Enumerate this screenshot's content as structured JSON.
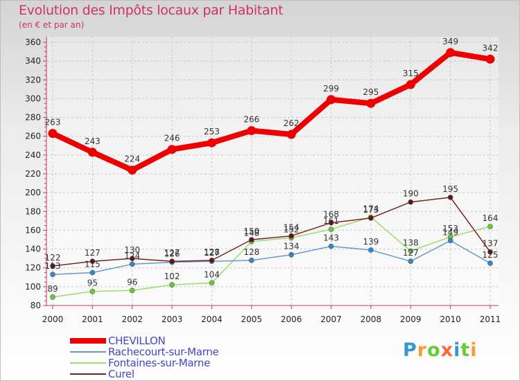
{
  "title": "Evolution des Impôts locaux par Habitant",
  "subtitle": "(en € et par an)",
  "brand": {
    "letters": [
      "P",
      "r",
      "o",
      "x",
      "i",
      "t",
      "i"
    ],
    "colors": [
      "#3399cc",
      "#ff9933",
      "#66cc33",
      "#ff6633",
      "#3399cc",
      "#66cc33",
      "#ff9933"
    ]
  },
  "chart_data": {
    "type": "line",
    "x": [
      "2000",
      "2001",
      "2002",
      "2003",
      "2004",
      "2005",
      "2006",
      "2007",
      "2008",
      "2009",
      "2010",
      "2011"
    ],
    "ylim": [
      80,
      360
    ],
    "yticks": [
      80,
      100,
      120,
      140,
      160,
      180,
      200,
      220,
      240,
      260,
      280,
      300,
      320,
      340,
      360
    ],
    "grid": true,
    "legend_position": "bottom-left",
    "series": [
      {
        "name": "Fontaines-sur-Marne",
        "color": "#99dd66",
        "marker": "#66cc33",
        "values": [
          89,
          95,
          96,
          102,
          104,
          148,
          152,
          161,
          174,
          138,
          153,
          164
        ]
      },
      {
        "name": "Rachecourt-sur-Marne",
        "color": "#6699cc",
        "marker": "#3388cc",
        "values": [
          113,
          115,
          124,
          126,
          127,
          128,
          134,
          143,
          139,
          127,
          149,
          125
        ]
      },
      {
        "name": "Curel",
        "color": "#772222",
        "marker": "#661111",
        "values": [
          122,
          127,
          130,
          127,
          128,
          150,
          154,
          168,
          173,
          190,
          195,
          137
        ]
      },
      {
        "name": "CHEVILLON",
        "color": "#ee0000",
        "marker": "#ee0000",
        "values": [
          263,
          243,
          224,
          246,
          253,
          266,
          262,
          299,
          295,
          315,
          349,
          342
        ]
      }
    ],
    "legend": [
      "CHEVILLON",
      "Rachecourt-sur-Marne",
      "Fontaines-sur-Marne",
      "Curel"
    ]
  }
}
